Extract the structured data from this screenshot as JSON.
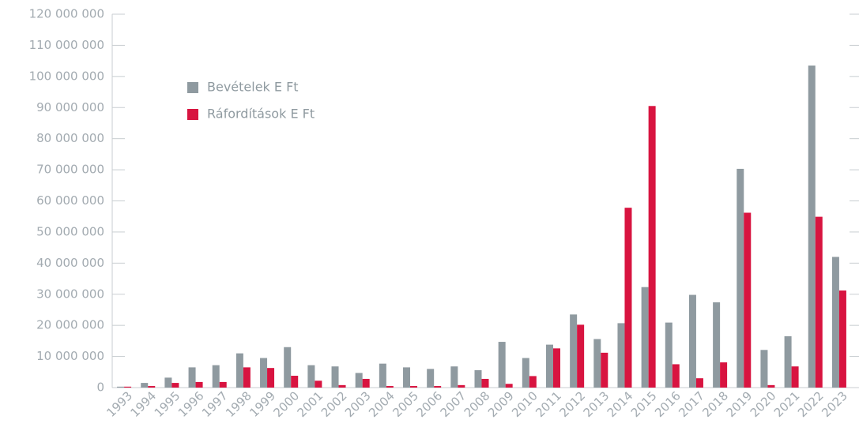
{
  "chart_data": {
    "type": "bar",
    "categories": [
      "1993",
      "1994",
      "1995",
      "1996",
      "1997",
      "1998",
      "1999",
      "2000",
      "2001",
      "2002",
      "2003",
      "2004",
      "2005",
      "2006",
      "2007",
      "2008",
      "2009",
      "2010",
      "2011",
      "2012",
      "2013",
      "2014",
      "2015",
      "2016",
      "2017",
      "2018",
      "2019",
      "2020",
      "2021",
      "2022",
      "2023"
    ],
    "series": [
      {
        "name": "Bevételek E Ft",
        "color": "#8f9aa0",
        "values": [
          300000,
          1500000,
          3200000,
          6500000,
          7200000,
          11000000,
          9500000,
          13000000,
          7200000,
          6800000,
          4700000,
          7700000,
          6500000,
          6000000,
          6800000,
          5600000,
          14700000,
          9500000,
          13800000,
          23500000,
          15600000,
          20700000,
          32300000,
          20900000,
          29800000,
          27400000,
          70300000,
          12100000,
          16500000,
          103500000,
          42000000
        ]
      },
      {
        "name": "Ráfordítások E Ft",
        "color": "#d81440",
        "values": [
          300000,
          500000,
          1500000,
          1800000,
          1800000,
          6500000,
          6300000,
          3800000,
          2200000,
          800000,
          2800000,
          500000,
          500000,
          500000,
          800000,
          2800000,
          1200000,
          3700000,
          12600000,
          20200000,
          11200000,
          57800000,
          90500000,
          7500000,
          3000000,
          8100000,
          56200000,
          800000,
          6800000,
          54900000,
          31200000
        ]
      }
    ],
    "ylim": [
      0,
      120000000
    ],
    "yticks": [
      0,
      {
        "value": 10000000,
        "label": "10 000 000"
      },
      {
        "value": 20000000,
        "label": "20 000 000"
      },
      {
        "value": 30000000,
        "label": "30 000 000"
      },
      {
        "value": 40000000,
        "label": "40 000 000"
      },
      {
        "value": 50000000,
        "label": "50 000 000"
      },
      {
        "value": 60000000,
        "label": "60 000 000"
      },
      {
        "value": 70000000,
        "label": "70 000 000"
      },
      {
        "value": 80000000,
        "label": "80 000 000"
      },
      {
        "value": 90000000,
        "label": "90 000 000"
      },
      {
        "value": 100000000,
        "label": "100 000 000"
      },
      {
        "value": 110000000,
        "label": "110 000 000"
      },
      {
        "value": 120000000,
        "label": "120 000 000"
      }
    ],
    "legend": "upper-left"
  }
}
